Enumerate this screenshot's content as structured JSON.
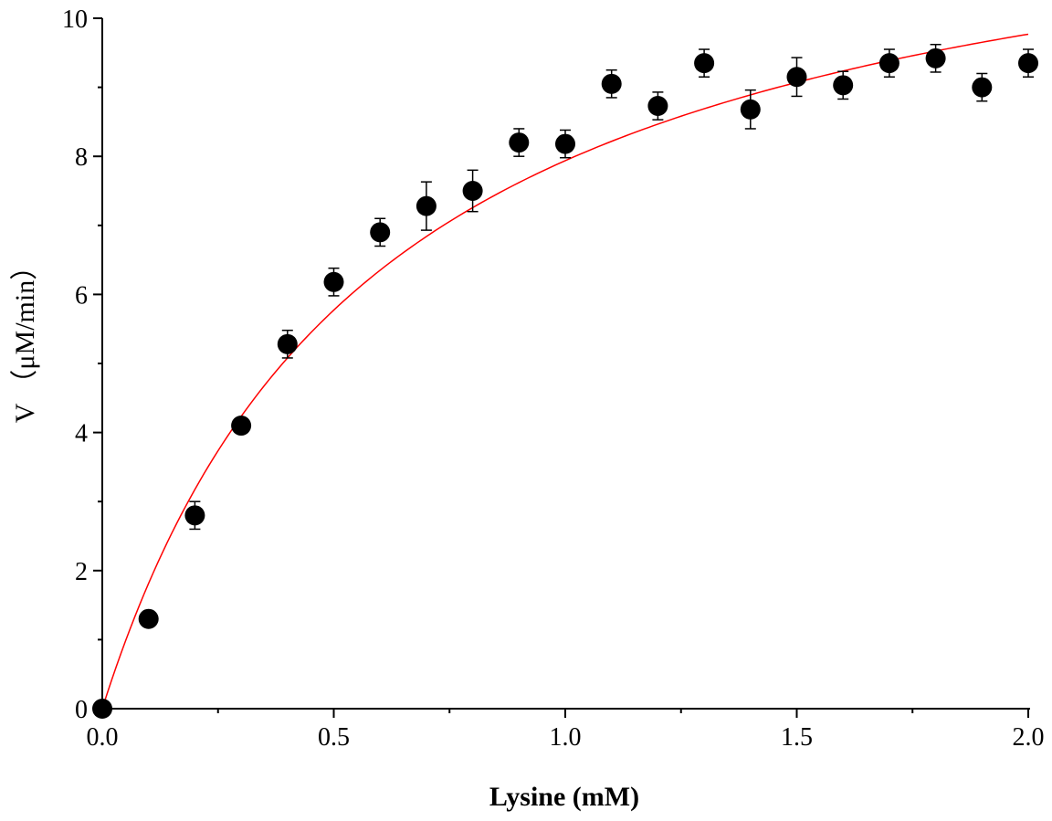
{
  "chart_data": {
    "type": "scatter",
    "title": "",
    "xlabel": "Lysine (mM)",
    "ylabel": "V （μM/min）",
    "xlim": [
      0.0,
      2.0
    ],
    "ylim": [
      0,
      10
    ],
    "x_ticks": [
      0.0,
      0.5,
      1.0,
      1.5,
      2.0
    ],
    "x_tick_labels": [
      "0.0",
      "0.5",
      "1.0",
      "1.5",
      "2.0"
    ],
    "y_ticks": [
      0,
      2,
      4,
      6,
      8,
      10
    ],
    "y_tick_labels": [
      "0",
      "2",
      "4",
      "6",
      "8",
      "10"
    ],
    "grid": false,
    "legend": "none",
    "series": [
      {
        "kind": "points",
        "color": "#000000",
        "x": [
          0.0,
          0.1,
          0.2,
          0.3,
          0.4,
          0.5,
          0.6,
          0.7,
          0.8,
          0.9,
          1.0,
          1.1,
          1.2,
          1.3,
          1.4,
          1.5,
          1.6,
          1.7,
          1.8,
          1.9,
          2.0
        ],
        "y": [
          0.0,
          1.3,
          2.8,
          4.1,
          5.28,
          6.18,
          6.9,
          7.28,
          7.5,
          8.2,
          8.18,
          9.05,
          8.73,
          9.35,
          8.68,
          9.15,
          9.03,
          9.35,
          9.42,
          9.0,
          9.35
        ],
        "error": [
          0.0,
          0.0,
          0.2,
          0.0,
          0.2,
          0.2,
          0.2,
          0.35,
          0.3,
          0.2,
          0.2,
          0.2,
          0.2,
          0.2,
          0.28,
          0.28,
          0.2,
          0.2,
          0.2,
          0.2,
          0.2
        ]
      },
      {
        "kind": "fit",
        "model": "michaelis-menten",
        "color": "#ff0000",
        "vmax": 12.7,
        "km": 0.6
      }
    ]
  }
}
